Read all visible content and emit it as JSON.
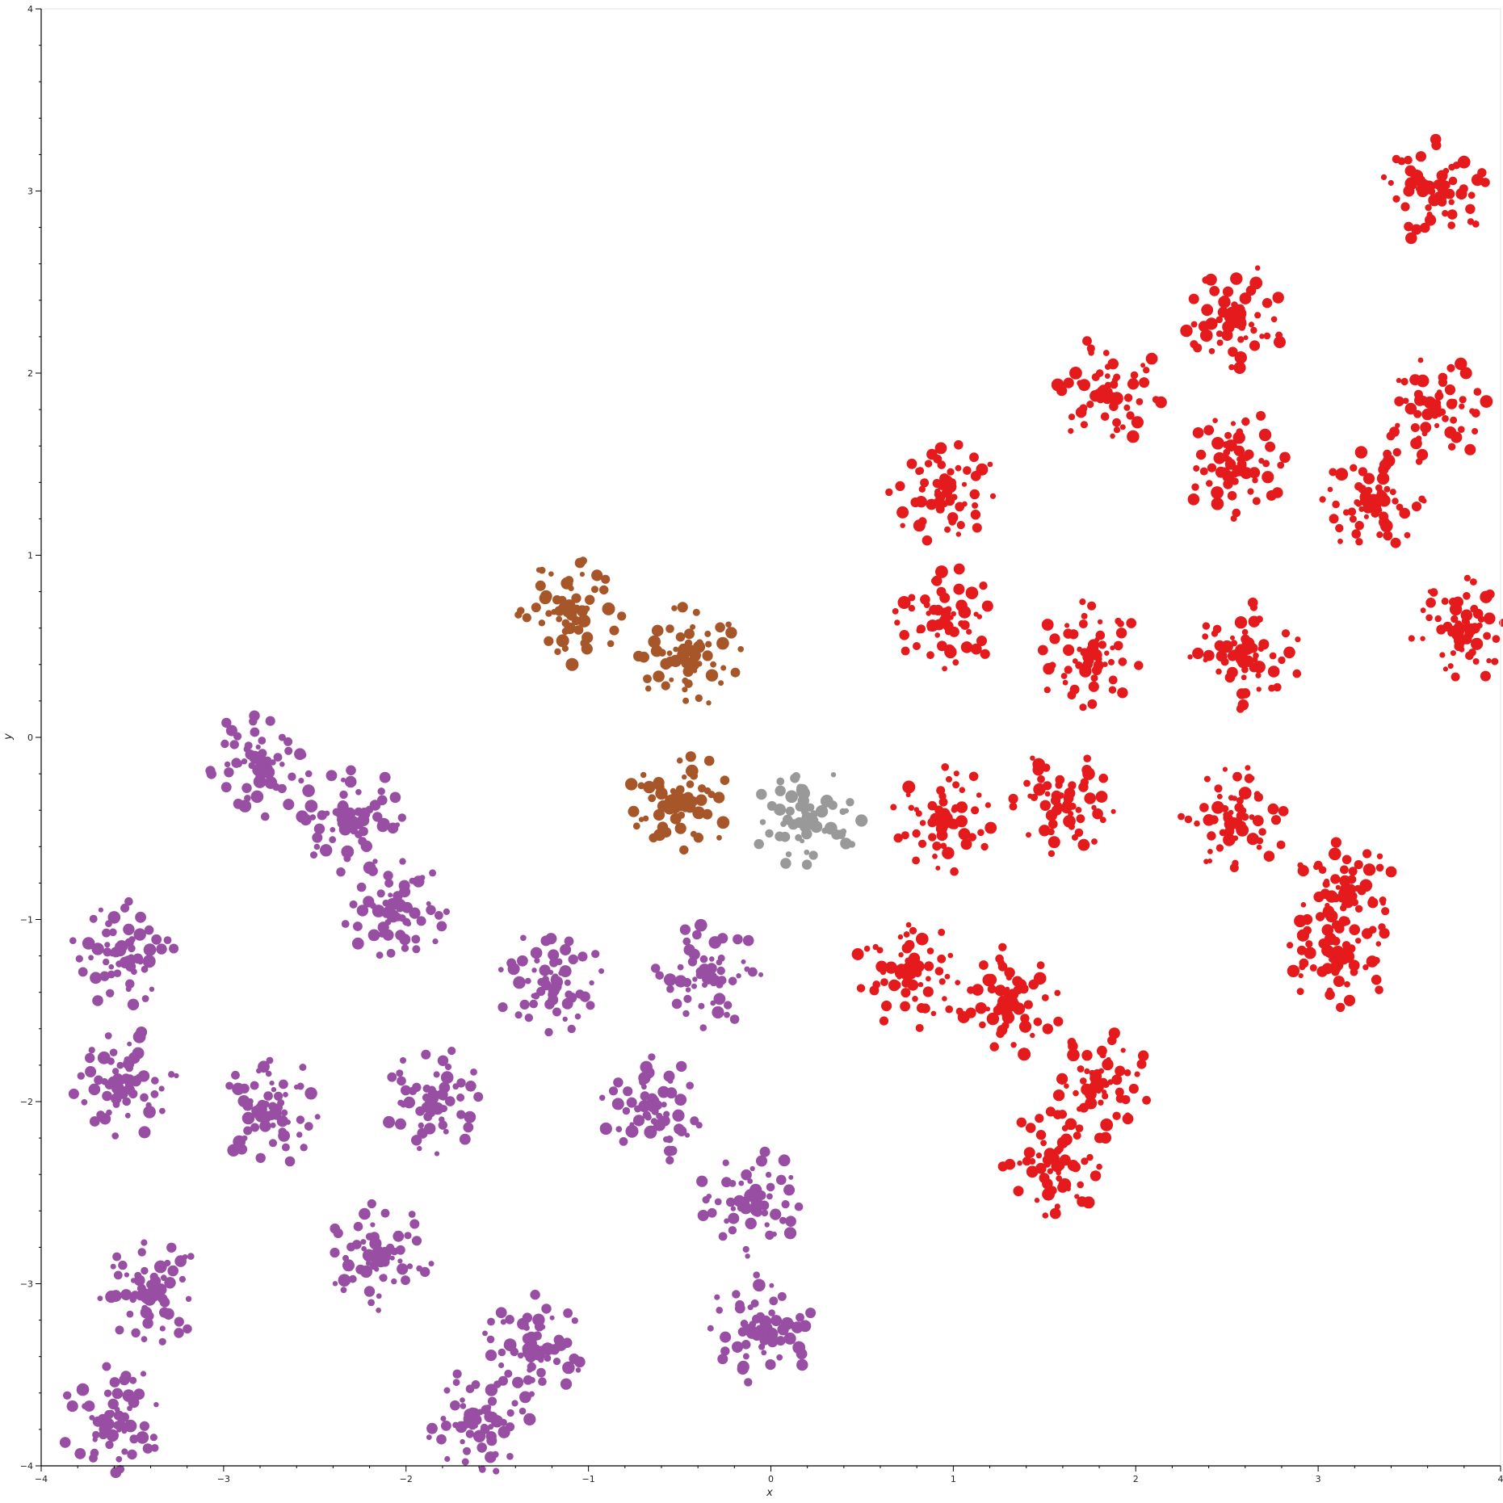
{
  "chart_data": {
    "type": "scatter",
    "title": "",
    "xlabel": "x",
    "ylabel": "y",
    "xlim": [
      -4,
      4
    ],
    "ylim": [
      -4,
      4
    ],
    "x_ticks": [
      "−4",
      "−3",
      "−2",
      "−1",
      "0",
      "1",
      "2",
      "3",
      "4"
    ],
    "y_ticks": [
      "−4",
      "−3",
      "−2",
      "−1",
      "0",
      "1",
      "2",
      "3",
      "4"
    ],
    "grid": false,
    "legend": "none",
    "series": [
      {
        "color": "#984ea3",
        "clusters": [
          [
            -2.05,
            -0.95
          ],
          [
            -1.2,
            -1.35
          ],
          [
            -0.35,
            -1.3
          ],
          [
            -0.65,
            -2.05
          ],
          [
            -1.85,
            -2.0
          ],
          [
            -2.15,
            -2.85
          ],
          [
            -0.1,
            -2.55
          ],
          [
            -2.3,
            -0.45
          ],
          [
            -3.55,
            -1.9
          ],
          [
            -2.75,
            -2.05
          ],
          [
            -3.4,
            -3.05
          ],
          [
            -1.3,
            -3.35
          ],
          [
            -3.6,
            -3.75
          ],
          [
            -0.05,
            -3.25
          ],
          [
            -3.55,
            -1.2
          ],
          [
            -2.8,
            -0.15
          ],
          [
            -1.6,
            -3.75
          ]
        ]
      },
      {
        "color": "#a65628",
        "clusters": [
          [
            -0.5,
            -0.35
          ],
          [
            -0.45,
            0.45
          ],
          [
            -1.1,
            0.7
          ]
        ]
      },
      {
        "color": "#999999",
        "clusters": [
          [
            0.2,
            -0.45
          ]
        ]
      },
      {
        "color": "#e41a1c",
        "clusters": [
          [
            0.95,
            0.65
          ],
          [
            1.75,
            0.45
          ],
          [
            0.95,
            -0.45
          ],
          [
            1.6,
            -0.35
          ],
          [
            0.75,
            -1.3
          ],
          [
            1.3,
            -1.45
          ],
          [
            1.8,
            -1.9
          ],
          [
            0.95,
            1.35
          ],
          [
            2.6,
            0.45
          ],
          [
            2.55,
            -0.45
          ],
          [
            3.3,
            1.3
          ],
          [
            2.55,
            1.5
          ],
          [
            2.55,
            2.3
          ],
          [
            3.15,
            -0.85
          ],
          [
            1.55,
            -2.35
          ],
          [
            3.8,
            0.6
          ],
          [
            3.65,
            1.8
          ],
          [
            3.65,
            3.0
          ],
          [
            1.85,
            1.9
          ],
          [
            3.1,
            -1.2
          ]
        ]
      }
    ]
  }
}
